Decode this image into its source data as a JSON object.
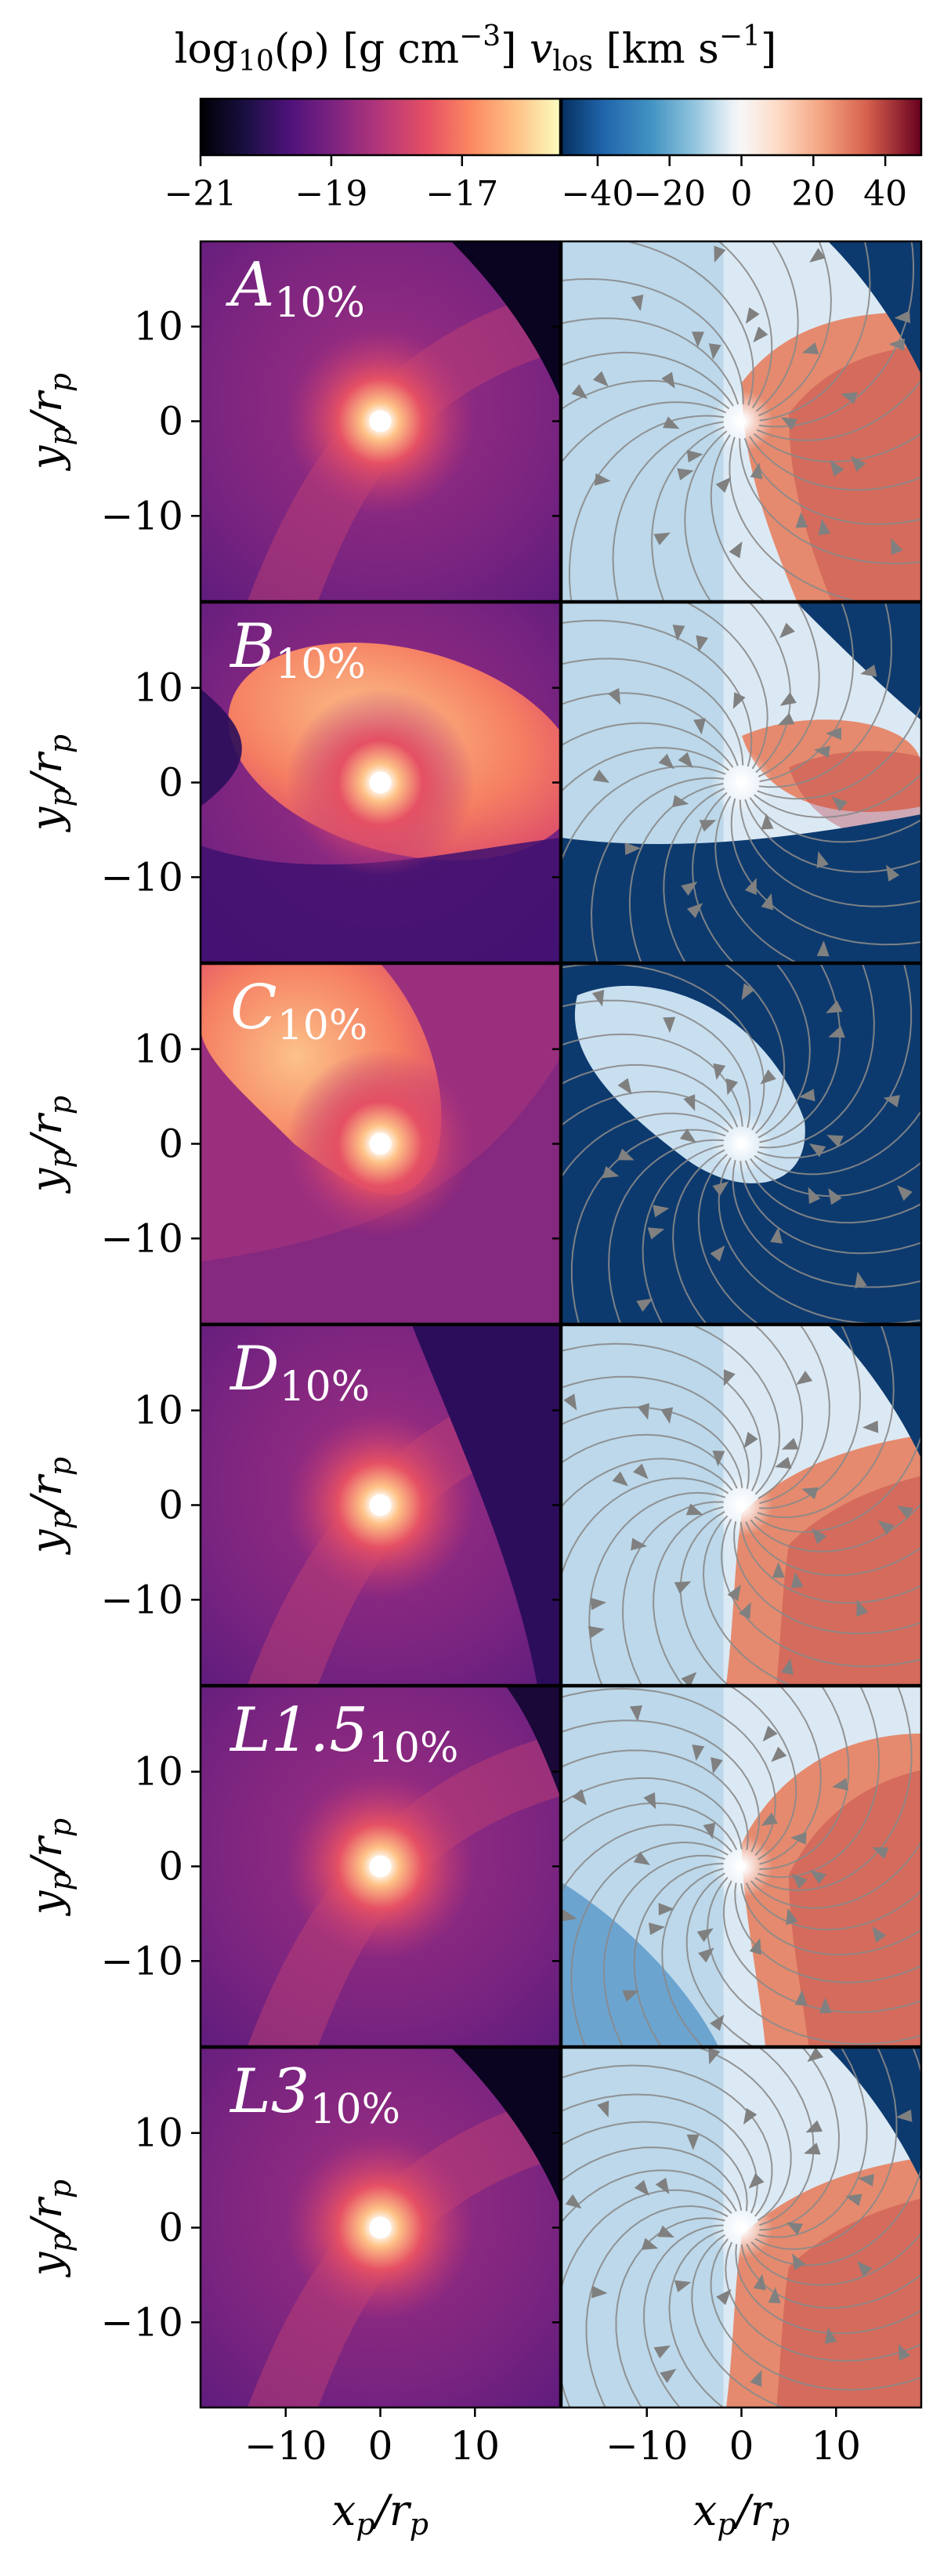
{
  "header": {
    "density_label": {
      "main": "log",
      "sub": "10",
      "rest": "(ρ)  [g cm",
      "sup": "−3",
      "close": "]"
    },
    "velocity_label": {
      "main": "v",
      "sub": "los",
      "rest": "  [km s",
      "sup": "−1",
      "close": "]"
    }
  },
  "colorbars": [
    {
      "name": "density",
      "colormap": "magma",
      "range": [
        -21,
        -15.5
      ],
      "ticks": [
        "−21",
        "−19",
        "−17"
      ],
      "tick_values": [
        -21,
        -19,
        -17
      ]
    },
    {
      "name": "velocity",
      "colormap": "RdBu_r",
      "range": [
        -50,
        50
      ],
      "ticks": [
        "−40",
        "−20",
        "0",
        "20",
        "40"
      ],
      "tick_values": [
        -40,
        -20,
        0,
        20,
        40
      ]
    }
  ],
  "chart_data": {
    "type": "heatmap",
    "layout": "6 rows x 2 columns",
    "columns": [
      "density",
      "line-of-sight velocity with streamlines"
    ],
    "xlabel": {
      "main": "x",
      "sub": "p",
      "slash": "/r",
      "sub2": "p"
    },
    "ylabel": {
      "main": "y",
      "sub": "p",
      "slash": "/r",
      "sub2": "p"
    },
    "xlim": [
      -19,
      19
    ],
    "ylim": [
      -19,
      19
    ],
    "x_ticks": [
      -10,
      0,
      10
    ],
    "y_ticks": [
      10,
      0,
      -10
    ],
    "x_tick_labels": [
      "−10",
      "0",
      "10"
    ],
    "y_tick_labels": [
      "10",
      "0",
      "−10"
    ],
    "rows": [
      {
        "label": "A",
        "sub": "10%"
      },
      {
        "label": "B",
        "sub": "10%"
      },
      {
        "label": "C",
        "sub": "10%"
      },
      {
        "label": "D",
        "sub": "10%"
      },
      {
        "label": "L1.5",
        "sub": "10%"
      },
      {
        "label": "L3",
        "sub": "10%"
      }
    ]
  }
}
